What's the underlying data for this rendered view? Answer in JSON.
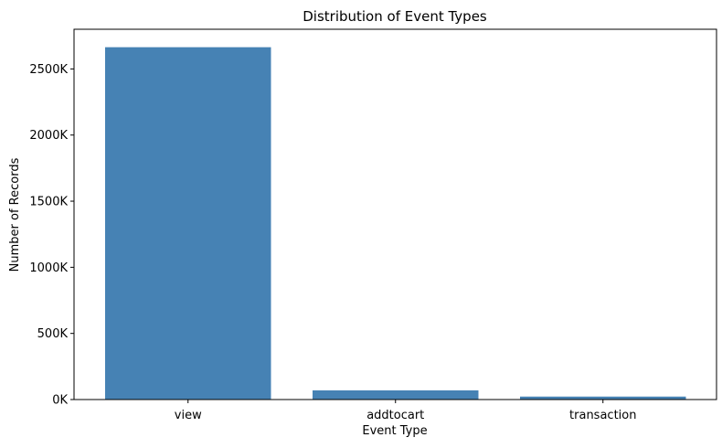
{
  "chart_data": {
    "type": "bar",
    "title": "Distribution of Event Types",
    "xlabel": "Event Type",
    "ylabel": "Number of Records",
    "categories": [
      "view",
      "addtocart",
      "transaction"
    ],
    "values": [
      2664312,
      69332,
      22457
    ],
    "ylim": [
      0,
      2800000
    ],
    "yticks": [
      0,
      500000,
      1000000,
      1500000,
      2000000,
      2500000
    ],
    "ytick_labels": [
      "0K",
      "500K",
      "1000K",
      "1500K",
      "2000K",
      "2500K"
    ],
    "bar_color": "#4682b4",
    "grid": false,
    "legend": false
  }
}
